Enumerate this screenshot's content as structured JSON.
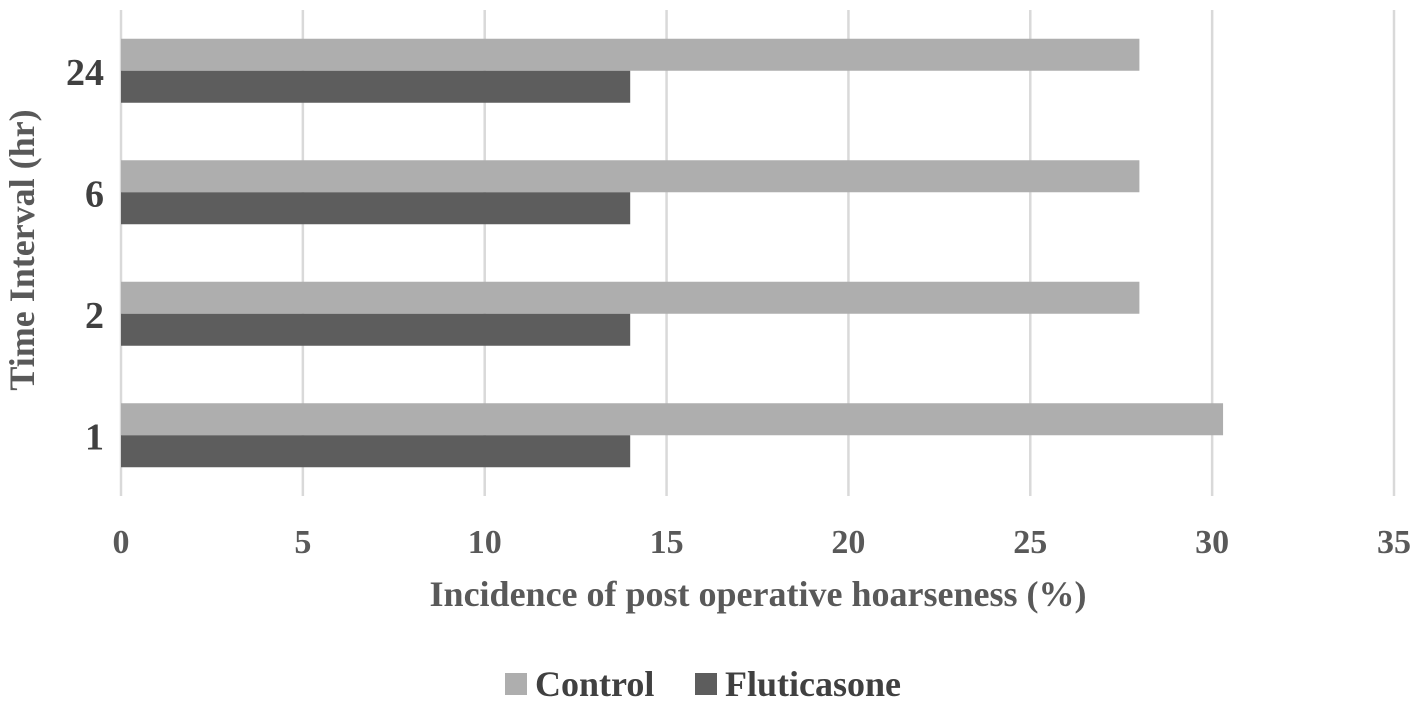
{
  "chart_data": {
    "type": "bar",
    "orientation": "horizontal",
    "categories": [
      "1",
      "2",
      "6",
      "24"
    ],
    "series": [
      {
        "name": "Control",
        "values": [
          30.3,
          28,
          28,
          28
        ],
        "color": "#aeaeae"
      },
      {
        "name": "Fluticasone",
        "values": [
          14,
          14,
          14,
          14
        ],
        "color": "#5d5d5d"
      }
    ],
    "xlabel": "Incidence of post operative hoarseness (%)",
    "ylabel": "Time Interval (hr)",
    "xlim": [
      0,
      35
    ],
    "xticks": [
      "0",
      "5",
      "10",
      "15",
      "20",
      "25",
      "30",
      "35"
    ],
    "grid": true,
    "legend_position": "bottom",
    "gridline_color": "#d9d9d9"
  }
}
